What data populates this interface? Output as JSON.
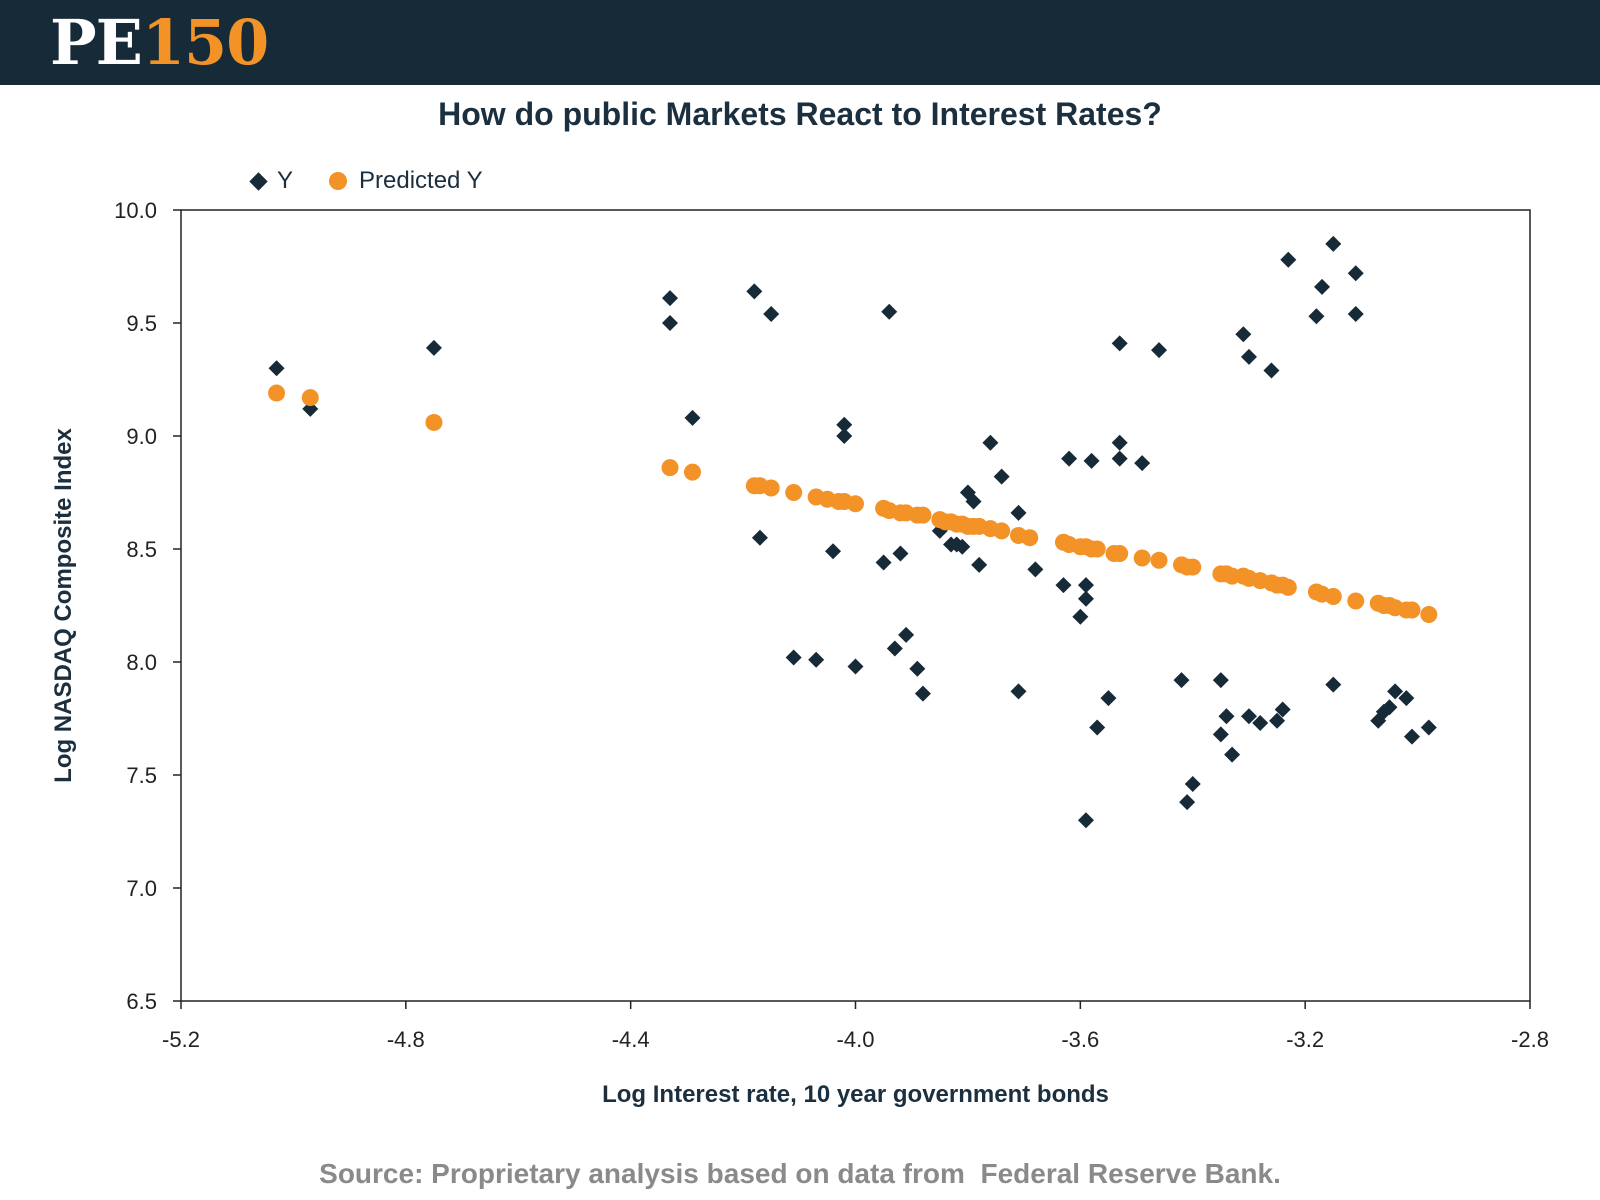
{
  "header": {
    "logo_prefix": "PE",
    "logo_number": "150"
  },
  "colors": {
    "header_bg": "#172a38",
    "y_marker": "#172a38",
    "predicted_marker": "#f39226",
    "source_text": "#8a8a8a"
  },
  "source_text": "Source: Proprietary analysis based on data from  Federal Reserve Bank.",
  "chart_data": {
    "type": "scatter",
    "title": "How do public Markets React to Interest Rates?",
    "xlabel": "Log Interest rate, 10 year government bonds",
    "ylabel": "Log NASDAQ Composite Index",
    "xlim": [
      -5.2,
      -2.8
    ],
    "ylim": [
      6.5,
      10.0
    ],
    "x_ticks": [
      "-5.2",
      "-4.8",
      "-4.4",
      "-4.0",
      "-3.6",
      "-3.2",
      "-2.8"
    ],
    "y_ticks": [
      "10.0",
      "9.5",
      "9.0",
      "8.5",
      "8.0",
      "7.5",
      "7.0",
      "6.5"
    ],
    "grid": false,
    "legend_position": "top-left",
    "series": [
      {
        "name": "Y",
        "marker": "diamond",
        "points": [
          [
            -5.03,
            9.3
          ],
          [
            -4.97,
            9.12
          ],
          [
            -4.75,
            9.39
          ],
          [
            -4.33,
            9.61
          ],
          [
            -4.33,
            9.5
          ],
          [
            -4.29,
            9.08
          ],
          [
            -4.18,
            9.64
          ],
          [
            -4.15,
            9.54
          ],
          [
            -4.17,
            8.55
          ],
          [
            -4.11,
            8.02
          ],
          [
            -4.07,
            8.01
          ],
          [
            -4.04,
            8.49
          ],
          [
            -4.02,
            9.05
          ],
          [
            -4.02,
            9.0
          ],
          [
            -4.0,
            7.98
          ],
          [
            -3.94,
            9.55
          ],
          [
            -3.95,
            8.44
          ],
          [
            -3.92,
            8.48
          ],
          [
            -3.93,
            8.06
          ],
          [
            -3.91,
            8.12
          ],
          [
            -3.89,
            7.97
          ],
          [
            -3.88,
            7.86
          ],
          [
            -3.85,
            8.58
          ],
          [
            -3.83,
            8.52
          ],
          [
            -3.82,
            8.52
          ],
          [
            -3.81,
            8.51
          ],
          [
            -3.8,
            8.75
          ],
          [
            -3.79,
            8.71
          ],
          [
            -3.78,
            8.43
          ],
          [
            -3.76,
            8.97
          ],
          [
            -3.74,
            8.82
          ],
          [
            -3.71,
            8.66
          ],
          [
            -3.71,
            7.87
          ],
          [
            -3.68,
            8.41
          ],
          [
            -3.63,
            8.34
          ],
          [
            -3.62,
            8.9
          ],
          [
            -3.6,
            8.2
          ],
          [
            -3.59,
            8.28
          ],
          [
            -3.59,
            8.34
          ],
          [
            -3.58,
            8.89
          ],
          [
            -3.59,
            7.3
          ],
          [
            -3.57,
            7.71
          ],
          [
            -3.55,
            7.84
          ],
          [
            -3.53,
            9.41
          ],
          [
            -3.53,
            8.97
          ],
          [
            -3.53,
            8.9
          ],
          [
            -3.49,
            8.88
          ],
          [
            -3.46,
            9.38
          ],
          [
            -3.42,
            7.92
          ],
          [
            -3.41,
            7.38
          ],
          [
            -3.4,
            7.46
          ],
          [
            -3.35,
            7.92
          ],
          [
            -3.35,
            7.68
          ],
          [
            -3.34,
            7.76
          ],
          [
            -3.33,
            7.59
          ],
          [
            -3.31,
            9.45
          ],
          [
            -3.3,
            9.35
          ],
          [
            -3.3,
            7.76
          ],
          [
            -3.28,
            7.73
          ],
          [
            -3.26,
            9.29
          ],
          [
            -3.25,
            7.74
          ],
          [
            -3.24,
            7.79
          ],
          [
            -3.23,
            9.78
          ],
          [
            -3.18,
            9.53
          ],
          [
            -3.17,
            9.66
          ],
          [
            -3.15,
            9.85
          ],
          [
            -3.15,
            7.9
          ],
          [
            -3.11,
            9.72
          ],
          [
            -3.11,
            9.54
          ],
          [
            -3.07,
            7.74
          ],
          [
            -3.06,
            7.78
          ],
          [
            -3.05,
            7.8
          ],
          [
            -3.04,
            7.87
          ],
          [
            -3.02,
            7.84
          ],
          [
            -3.01,
            7.67
          ],
          [
            -2.98,
            7.71
          ]
        ]
      },
      {
        "name": "Predicted Y",
        "marker": "circle",
        "points": [
          [
            -5.03,
            9.19
          ],
          [
            -4.97,
            9.17
          ],
          [
            -4.75,
            9.06
          ],
          [
            -4.33,
            8.86
          ],
          [
            -4.29,
            8.84
          ],
          [
            -4.18,
            8.78
          ],
          [
            -4.17,
            8.78
          ],
          [
            -4.15,
            8.77
          ],
          [
            -4.11,
            8.75
          ],
          [
            -4.07,
            8.73
          ],
          [
            -4.05,
            8.72
          ],
          [
            -4.03,
            8.71
          ],
          [
            -4.02,
            8.71
          ],
          [
            -4.0,
            8.7
          ],
          [
            -3.95,
            8.68
          ],
          [
            -3.94,
            8.67
          ],
          [
            -3.92,
            8.66
          ],
          [
            -3.91,
            8.66
          ],
          [
            -3.89,
            8.65
          ],
          [
            -3.88,
            8.65
          ],
          [
            -3.85,
            8.63
          ],
          [
            -3.84,
            8.62
          ],
          [
            -3.83,
            8.62
          ],
          [
            -3.82,
            8.61
          ],
          [
            -3.81,
            8.61
          ],
          [
            -3.8,
            8.6
          ],
          [
            -3.79,
            8.6
          ],
          [
            -3.78,
            8.6
          ],
          [
            -3.76,
            8.59
          ],
          [
            -3.74,
            8.58
          ],
          [
            -3.71,
            8.56
          ],
          [
            -3.69,
            8.55
          ],
          [
            -3.63,
            8.53
          ],
          [
            -3.62,
            8.52
          ],
          [
            -3.6,
            8.51
          ],
          [
            -3.59,
            8.51
          ],
          [
            -3.58,
            8.5
          ],
          [
            -3.57,
            8.5
          ],
          [
            -3.54,
            8.48
          ],
          [
            -3.53,
            8.48
          ],
          [
            -3.49,
            8.46
          ],
          [
            -3.46,
            8.45
          ],
          [
            -3.42,
            8.43
          ],
          [
            -3.41,
            8.42
          ],
          [
            -3.4,
            8.42
          ],
          [
            -3.35,
            8.39
          ],
          [
            -3.34,
            8.39
          ],
          [
            -3.33,
            8.38
          ],
          [
            -3.31,
            8.38
          ],
          [
            -3.3,
            8.37
          ],
          [
            -3.28,
            8.36
          ],
          [
            -3.26,
            8.35
          ],
          [
            -3.25,
            8.34
          ],
          [
            -3.24,
            8.34
          ],
          [
            -3.23,
            8.33
          ],
          [
            -3.18,
            8.31
          ],
          [
            -3.17,
            8.3
          ],
          [
            -3.15,
            8.29
          ],
          [
            -3.11,
            8.27
          ],
          [
            -3.07,
            8.26
          ],
          [
            -3.06,
            8.25
          ],
          [
            -3.05,
            8.25
          ],
          [
            -3.04,
            8.24
          ],
          [
            -3.02,
            8.23
          ],
          [
            -3.01,
            8.23
          ],
          [
            -2.98,
            8.21
          ]
        ]
      }
    ]
  }
}
